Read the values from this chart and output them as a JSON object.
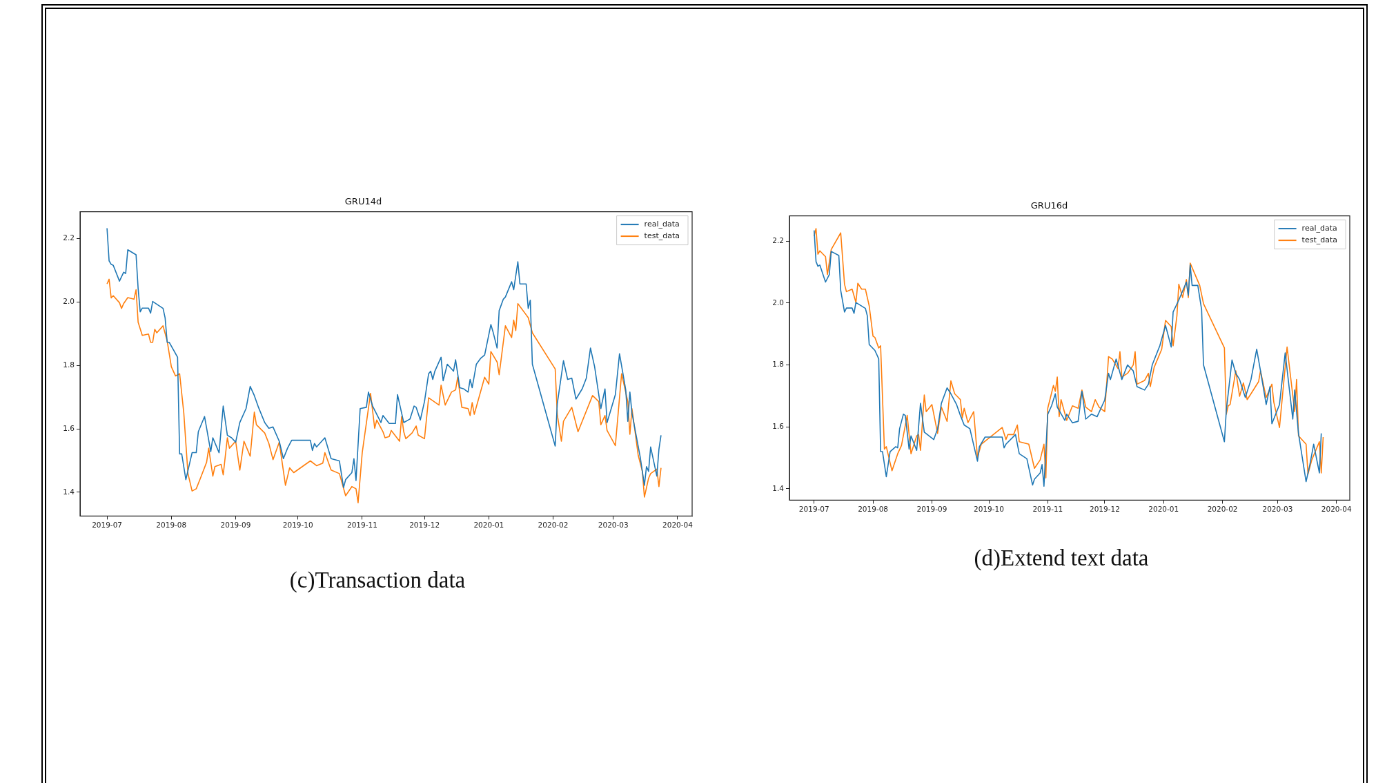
{
  "chart_data": [
    {
      "type": "line",
      "title": "GRU14d",
      "annotations": [
        "(c)Transaction data"
      ],
      "legend": "top right",
      "grid": false,
      "marker": "none",
      "line_style": "solid",
      "xlim": [
        "2019-06-18",
        "2020-04-08"
      ],
      "xticks": [
        "2019-07",
        "2019-08",
        "2019-09",
        "2019-10",
        "2019-11",
        "2019-12",
        "2020-01",
        "2020-02",
        "2020-03",
        "2020-04"
      ],
      "ylim": [
        1.325,
        2.285
      ],
      "yticks": [
        1.4,
        1.6,
        1.8,
        {
          "value": 2,
          "label": "2.0"
        },
        2.2
      ],
      "series": [
        {
          "name": "real_data",
          "color": "#1f77b4",
          "x": [
            "2019-07-01",
            "2019-07-02",
            "2019-07-03",
            "2019-07-04",
            "2019-07-07",
            "2019-07-09",
            "2019-07-10",
            "2019-07-11",
            "2019-07-15",
            "2019-07-16",
            "2019-07-17",
            "2019-07-18",
            "2019-07-21",
            "2019-07-22",
            "2019-07-23",
            "2019-07-28",
            "2019-07-29",
            "2019-07-30",
            "2019-07-31",
            "2019-08-04",
            "2019-08-05",
            "2019-08-06",
            "2019-08-08",
            "2019-08-11",
            "2019-08-13",
            "2019-08-14",
            "2019-08-17",
            "2019-08-20",
            "2019-08-21",
            "2019-08-24",
            "2019-08-26",
            "2019-08-28",
            "2019-08-30",
            "2019-09-01",
            "2019-09-03",
            "2019-09-06",
            "2019-09-08",
            "2019-09-10",
            "2019-09-12",
            "2019-09-15",
            "2019-09-17",
            "2019-09-19",
            "2019-09-22",
            "2019-09-24",
            "2019-09-26",
            "2019-09-28",
            "2019-10-07",
            "2019-10-08",
            "2019-10-09",
            "2019-10-10",
            "2019-10-14",
            "2019-10-17",
            "2019-10-21",
            "2019-10-23",
            "2019-10-24",
            "2019-10-27",
            "2019-10-28",
            "2019-10-29",
            "2019-10-31",
            "2019-11-03",
            "2019-11-04",
            "2019-11-06",
            "2019-11-10",
            "2019-11-11",
            "2019-11-14",
            "2019-11-17",
            "2019-11-18",
            "2019-11-21",
            "2019-11-24",
            "2019-11-26",
            "2019-11-27",
            "2019-11-29",
            "2019-12-01",
            "2019-12-03",
            "2019-12-04",
            "2019-12-05",
            "2019-12-06",
            "2019-12-09",
            "2019-12-10",
            "2019-12-12",
            "2019-12-15",
            "2019-12-16",
            "2019-12-18",
            "2019-12-20",
            "2019-12-22",
            "2019-12-23",
            "2019-12-24",
            "2019-12-26",
            "2019-12-28",
            "2019-12-30",
            "2020-01-02",
            "2020-01-03",
            "2020-01-05",
            "2020-01-06",
            "2020-01-08",
            "2020-01-09",
            "2020-01-12",
            "2020-01-13",
            "2020-01-15",
            "2020-01-16",
            "2020-01-19",
            "2020-01-20",
            "2020-01-21",
            "2020-01-22",
            "2020-02-02",
            "2020-02-03",
            "2020-02-06",
            "2020-02-08",
            "2020-02-10",
            "2020-02-12",
            "2020-02-15",
            "2020-02-17",
            "2020-02-19",
            "2020-02-21",
            "2020-02-24",
            "2020-02-26",
            "2020-02-27",
            "2020-03-02",
            "2020-03-04",
            "2020-03-07",
            "2020-03-08",
            "2020-03-09",
            "2020-03-10",
            "2020-03-14",
            "2020-03-16",
            "2020-03-17",
            "2020-03-18",
            "2020-03-19",
            "2020-03-22",
            "2020-03-23",
            "2020-03-24"
          ],
          "values": [
            2.233,
            2.13,
            2.119,
            2.116,
            2.066,
            2.094,
            2.09,
            2.165,
            2.149,
            2.042,
            1.969,
            1.981,
            1.981,
            1.965,
            2.002,
            1.98,
            1.95,
            1.873,
            1.873,
            1.826,
            1.521,
            1.521,
            1.44,
            1.525,
            1.525,
            1.591,
            1.639,
            1.528,
            1.572,
            1.525,
            1.672,
            1.58,
            1.572,
            1.558,
            1.62,
            1.664,
            1.734,
            1.705,
            1.668,
            1.62,
            1.602,
            1.606,
            1.561,
            1.506,
            1.539,
            1.564,
            1.564,
            1.532,
            1.554,
            1.543,
            1.572,
            1.506,
            1.499,
            1.415,
            1.44,
            1.462,
            1.506,
            1.437,
            1.664,
            1.668,
            1.716,
            1.672,
            1.62,
            1.642,
            1.617,
            1.617,
            1.708,
            1.62,
            1.631,
            1.672,
            1.668,
            1.628,
            1.686,
            1.774,
            1.782,
            1.756,
            1.782,
            1.826,
            1.752,
            1.804,
            1.782,
            1.818,
            1.73,
            1.726,
            1.716,
            1.756,
            1.73,
            1.804,
            1.822,
            1.833,
            1.929,
            1.907,
            1.855,
            1.973,
            2.009,
            2.016,
            2.064,
            2.039,
            2.127,
            2.057,
            2.057,
            1.98,
            2.006,
            1.804,
            1.546,
            1.679,
            1.815,
            1.756,
            1.76,
            1.694,
            1.726,
            1.76,
            1.855,
            1.796,
            1.664,
            1.726,
            1.62,
            1.708,
            1.837,
            1.723,
            1.624,
            1.716,
            1.65,
            1.51,
            1.422,
            1.481,
            1.466,
            1.543,
            1.451,
            1.536,
            1.58
          ]
        },
        {
          "name": "test_data",
          "color": "#ff7f0e",
          "x": [
            "2019-07-01",
            "2019-07-02",
            "2019-07-03",
            "2019-07-04",
            "2019-07-07",
            "2019-07-08",
            "2019-07-09",
            "2019-07-11",
            "2019-07-14",
            "2019-07-15",
            "2019-07-16",
            "2019-07-18",
            "2019-07-21",
            "2019-07-22",
            "2019-07-23",
            "2019-07-24",
            "2019-07-25",
            "2019-07-28",
            "2019-07-30",
            "2019-08-01",
            "2019-08-03",
            "2019-08-05",
            "2019-08-07",
            "2019-08-09",
            "2019-08-11",
            "2019-08-13",
            "2019-08-15",
            "2019-08-18",
            "2019-08-19",
            "2019-08-21",
            "2019-08-22",
            "2019-08-25",
            "2019-08-26",
            "2019-08-28",
            "2019-08-29",
            "2019-09-01",
            "2019-09-03",
            "2019-09-05",
            "2019-09-08",
            "2019-09-10",
            "2019-09-11",
            "2019-09-15",
            "2019-09-17",
            "2019-09-19",
            "2019-09-22",
            "2019-09-25",
            "2019-09-27",
            "2019-09-29",
            "2019-10-07",
            "2019-10-10",
            "2019-10-13",
            "2019-10-14",
            "2019-10-17",
            "2019-10-21",
            "2019-10-24",
            "2019-10-27",
            "2019-10-29",
            "2019-10-30",
            "2019-11-01",
            "2019-11-05",
            "2019-11-07",
            "2019-11-08",
            "2019-11-11",
            "2019-11-12",
            "2019-11-14",
            "2019-11-15",
            "2019-11-19",
            "2019-11-20",
            "2019-11-21",
            "2019-11-22",
            "2019-11-25",
            "2019-11-27",
            "2019-11-28",
            "2019-12-01",
            "2019-12-03",
            "2019-12-08",
            "2019-12-09",
            "2019-12-11",
            "2019-12-14",
            "2019-12-16",
            "2019-12-17",
            "2019-12-19",
            "2019-12-22",
            "2019-12-23",
            "2019-12-24",
            "2019-12-25",
            "2019-12-30",
            "2020-01-01",
            "2020-01-02",
            "2020-01-05",
            "2020-01-06",
            "2020-01-09",
            "2020-01-12",
            "2020-01-13",
            "2020-01-14",
            "2020-01-15",
            "2020-01-20",
            "2020-01-22",
            "2020-02-02",
            "2020-02-03",
            "2020-02-05",
            "2020-02-06",
            "2020-02-10",
            "2020-02-13",
            "2020-02-20",
            "2020-02-23",
            "2020-02-24",
            "2020-02-26",
            "2020-02-27",
            "2020-03-02",
            "2020-03-05",
            "2020-03-08",
            "2020-03-09",
            "2020-03-10",
            "2020-03-13",
            "2020-03-15",
            "2020-03-16",
            "2020-03-18",
            "2020-03-19",
            "2020-03-22",
            "2020-03-23",
            "2020-03-24"
          ],
          "values": [
            2.057,
            2.072,
            2.013,
            2.02,
            1.998,
            1.98,
            1.995,
            2.014,
            2.009,
            2.039,
            1.936,
            1.895,
            1.899,
            1.873,
            1.873,
            1.914,
            1.903,
            1.925,
            1.877,
            1.796,
            1.767,
            1.774,
            1.65,
            1.459,
            1.404,
            1.411,
            1.444,
            1.495,
            1.539,
            1.451,
            1.481,
            1.488,
            1.455,
            1.572,
            1.539,
            1.561,
            1.47,
            1.561,
            1.514,
            1.653,
            1.613,
            1.587,
            1.554,
            1.503,
            1.558,
            1.422,
            1.477,
            1.462,
            1.499,
            1.484,
            1.492,
            1.525,
            1.47,
            1.459,
            1.389,
            1.418,
            1.411,
            1.367,
            1.525,
            1.712,
            1.602,
            1.628,
            1.591,
            1.572,
            1.576,
            1.595,
            1.561,
            1.639,
            1.591,
            1.569,
            1.587,
            1.609,
            1.58,
            1.569,
            1.698,
            1.675,
            1.738,
            1.675,
            1.716,
            1.723,
            1.763,
            1.668,
            1.664,
            1.642,
            1.683,
            1.646,
            1.763,
            1.741,
            1.844,
            1.811,
            1.771,
            1.925,
            1.888,
            1.943,
            1.91,
            1.995,
            1.951,
            1.903,
            1.789,
            1.646,
            1.561,
            1.624,
            1.668,
            1.591,
            1.705,
            1.686,
            1.613,
            1.642,
            1.595,
            1.547,
            1.774,
            1.686,
            1.583,
            1.664,
            1.517,
            1.466,
            1.385,
            1.444,
            1.459,
            1.473,
            1.418,
            1.477
          ]
        }
      ]
    },
    {
      "type": "line",
      "title": "GRU16d",
      "annotations": [
        "(d)Extend text data"
      ],
      "legend": "top right",
      "grid": false,
      "marker": "none",
      "line_style": "solid",
      "xlim": [
        "2019-06-18",
        "2020-04-08"
      ],
      "xticks": [
        "2019-07",
        "2019-08",
        "2019-09",
        "2019-10",
        "2019-11",
        "2019-12",
        "2020-01",
        "2020-02",
        "2020-03",
        "2020-04"
      ],
      "ylim": [
        1.363,
        2.282
      ],
      "yticks": [
        1.4,
        1.6,
        1.8,
        {
          "value": 2,
          "label": "2.0"
        },
        2.2
      ],
      "series": [
        {
          "name": "real_data",
          "color": "#1f77b4",
          "x": [
            "2019-07-01",
            "2019-07-02",
            "2019-07-03",
            "2019-07-04",
            "2019-07-07",
            "2019-07-09",
            "2019-07-10",
            "2019-07-14",
            "2019-07-15",
            "2019-07-17",
            "2019-07-18",
            "2019-07-21",
            "2019-07-22",
            "2019-07-23",
            "2019-07-28",
            "2019-07-29",
            "2019-07-30",
            "2019-08-02",
            "2019-08-04",
            "2019-08-05",
            "2019-08-06",
            "2019-08-08",
            "2019-08-10",
            "2019-08-13",
            "2019-08-14",
            "2019-08-15",
            "2019-08-17",
            "2019-08-18",
            "2019-08-20",
            "2019-08-21",
            "2019-08-24",
            "2019-08-26",
            "2019-08-28",
            "2019-09-02",
            "2019-09-04",
            "2019-09-06",
            "2019-09-09",
            "2019-09-11",
            "2019-09-14",
            "2019-09-16",
            "2019-09-18",
            "2019-09-21",
            "2019-09-25",
            "2019-09-26",
            "2019-09-29",
            "2019-10-08",
            "2019-10-09",
            "2019-10-10",
            "2019-10-15",
            "2019-10-17",
            "2019-10-21",
            "2019-10-24",
            "2019-10-25",
            "2019-10-28",
            "2019-10-29",
            "2019-10-30",
            "2019-11-01",
            "2019-11-03",
            "2019-11-05",
            "2019-11-06",
            "2019-11-10",
            "2019-11-11",
            "2019-11-14",
            "2019-11-17",
            "2019-11-19",
            "2019-11-21",
            "2019-11-24",
            "2019-11-27",
            "2019-12-01",
            "2019-12-03",
            "2019-12-04",
            "2019-12-07",
            "2019-12-10",
            "2019-12-13",
            "2019-12-16",
            "2019-12-18",
            "2019-12-22",
            "2019-12-24",
            "2019-12-26",
            "2019-12-27",
            "2019-12-30",
            "2020-01-02",
            "2020-01-05",
            "2020-01-06",
            "2020-01-09",
            "2020-01-13",
            "2020-01-14",
            "2020-01-15",
            "2020-01-16",
            "2020-01-19",
            "2020-01-21",
            "2020-01-22",
            "2020-02-02",
            "2020-02-03",
            "2020-02-06",
            "2020-02-08",
            "2020-02-10",
            "2020-02-13",
            "2020-02-16",
            "2020-02-19",
            "2020-02-21",
            "2020-02-24",
            "2020-02-26",
            "2020-02-27",
            "2020-03-02",
            "2020-03-05",
            "2020-03-09",
            "2020-03-10",
            "2020-03-12",
            "2020-03-16",
            "2020-03-18",
            "2020-03-20",
            "2020-03-23",
            "2020-03-24"
          ],
          "values": [
            2.235,
            2.134,
            2.119,
            2.123,
            2.068,
            2.092,
            2.167,
            2.154,
            2.041,
            1.971,
            1.984,
            1.984,
            1.967,
            2.002,
            1.983,
            1.959,
            1.866,
            1.847,
            1.82,
            1.52,
            1.52,
            1.439,
            1.52,
            1.536,
            1.532,
            1.594,
            1.641,
            1.637,
            1.528,
            1.571,
            1.524,
            1.676,
            1.583,
            1.559,
            1.594,
            1.676,
            1.726,
            1.707,
            1.672,
            1.637,
            1.606,
            1.594,
            1.489,
            1.536,
            1.567,
            1.567,
            1.532,
            1.544,
            1.575,
            1.513,
            1.497,
            1.412,
            1.431,
            1.451,
            1.478,
            1.408,
            1.641,
            1.668,
            1.707,
            1.664,
            1.621,
            1.641,
            1.613,
            1.618,
            1.715,
            1.625,
            1.641,
            1.633,
            1.687,
            1.773,
            1.753,
            1.819,
            1.753,
            1.8,
            1.781,
            1.73,
            1.719,
            1.738,
            1.8,
            1.816,
            1.862,
            1.928,
            1.858,
            1.971,
            2.01,
            2.068,
            2.025,
            2.123,
            2.057,
            2.057,
            1.979,
            1.8,
            1.552,
            1.653,
            1.816,
            1.773,
            1.753,
            1.695,
            1.753,
            1.851,
            1.781,
            1.672,
            1.73,
            1.61,
            1.672,
            1.839,
            1.625,
            1.719,
            1.579,
            1.423,
            1.478,
            1.544,
            1.451,
            1.579
          ]
        },
        {
          "name": "test_data",
          "color": "#ff7f0e",
          "x": [
            "2019-07-01",
            "2019-07-02",
            "2019-07-03",
            "2019-07-04",
            "2019-07-07",
            "2019-07-08",
            "2019-07-10",
            "2019-07-15",
            "2019-07-17",
            "2019-07-18",
            "2019-07-21",
            "2019-07-23",
            "2019-07-24",
            "2019-07-26",
            "2019-07-28",
            "2019-07-30",
            "2019-08-01",
            "2019-08-02",
            "2019-08-04",
            "2019-08-05",
            "2019-08-07",
            "2019-08-08",
            "2019-08-11",
            "2019-08-14",
            "2019-08-16",
            "2019-08-19",
            "2019-08-21",
            "2019-08-24",
            "2019-08-25",
            "2019-08-26",
            "2019-08-28",
            "2019-08-29",
            "2019-09-01",
            "2019-09-04",
            "2019-09-06",
            "2019-09-09",
            "2019-09-11",
            "2019-09-13",
            "2019-09-16",
            "2019-09-17",
            "2019-09-18",
            "2019-09-20",
            "2019-09-23",
            "2019-09-25",
            "2019-09-27",
            "2019-10-08",
            "2019-10-10",
            "2019-10-11",
            "2019-10-14",
            "2019-10-16",
            "2019-10-17",
            "2019-10-22",
            "2019-10-25",
            "2019-10-28",
            "2019-10-30",
            "2019-10-31",
            "2019-11-01",
            "2019-11-04",
            "2019-11-05",
            "2019-11-06",
            "2019-11-07",
            "2019-11-08",
            "2019-11-11",
            "2019-11-14",
            "2019-11-17",
            "2019-11-19",
            "2019-11-21",
            "2019-11-24",
            "2019-11-26",
            "2019-11-28",
            "2019-12-01",
            "2019-12-03",
            "2019-12-05",
            "2019-12-08",
            "2019-12-09",
            "2019-12-10",
            "2019-12-13",
            "2019-12-16",
            "2019-12-17",
            "2019-12-18",
            "2019-12-22",
            "2019-12-24",
            "2019-12-25",
            "2019-12-27",
            "2019-12-31",
            "2020-01-02",
            "2020-01-05",
            "2020-01-06",
            "2020-01-08",
            "2020-01-09",
            "2020-01-11",
            "2020-01-13",
            "2020-01-14",
            "2020-01-15",
            "2020-01-20",
            "2020-01-22",
            "2020-02-02",
            "2020-02-03",
            "2020-02-04",
            "2020-02-05",
            "2020-02-08",
            "2020-02-10",
            "2020-02-12",
            "2020-02-14",
            "2020-02-16",
            "2020-02-20",
            "2020-02-21",
            "2020-02-24",
            "2020-02-27",
            "2020-02-28",
            "2020-03-02",
            "2020-03-06",
            "2020-03-10",
            "2020-03-11",
            "2020-03-12",
            "2020-03-16",
            "2020-03-17",
            "2020-03-19",
            "2020-03-23",
            "2020-03-24",
            "2020-03-25"
          ],
          "values": [
            2.216,
            2.241,
            2.158,
            2.169,
            2.15,
            2.092,
            2.173,
            2.227,
            2.061,
            2.037,
            2.045,
            2.002,
            2.064,
            2.045,
            2.045,
            1.991,
            1.893,
            1.889,
            1.855,
            1.862,
            1.528,
            1.536,
            1.458,
            1.513,
            1.54,
            1.637,
            1.513,
            1.571,
            1.575,
            1.524,
            1.703,
            1.649,
            1.672,
            1.579,
            1.664,
            1.618,
            1.749,
            1.707,
            1.688,
            1.629,
            1.66,
            1.614,
            1.649,
            1.501,
            1.544,
            1.598,
            1.559,
            1.575,
            1.575,
            1.606,
            1.552,
            1.544,
            1.466,
            1.493,
            1.544,
            1.435,
            1.66,
            1.734,
            1.715,
            1.761,
            1.633,
            1.688,
            1.621,
            1.668,
            1.66,
            1.719,
            1.664,
            1.649,
            1.688,
            1.664,
            1.649,
            1.827,
            1.819,
            1.788,
            1.843,
            1.761,
            1.773,
            1.8,
            1.843,
            1.738,
            1.75,
            1.773,
            1.73,
            1.792,
            1.851,
            1.944,
            1.924,
            1.862,
            1.959,
            2.061,
            2.018,
            2.076,
            2.018,
            2.129,
            2.057,
            1.998,
            1.855,
            1.641,
            1.668,
            1.672,
            1.781,
            1.699,
            1.742,
            1.688,
            1.707,
            1.746,
            1.781,
            1.695,
            1.738,
            1.68,
            1.598,
            1.858,
            1.649,
            1.753,
            1.571,
            1.544,
            1.447,
            1.493,
            1.552,
            1.451,
            1.567
          ]
        }
      ]
    }
  ]
}
